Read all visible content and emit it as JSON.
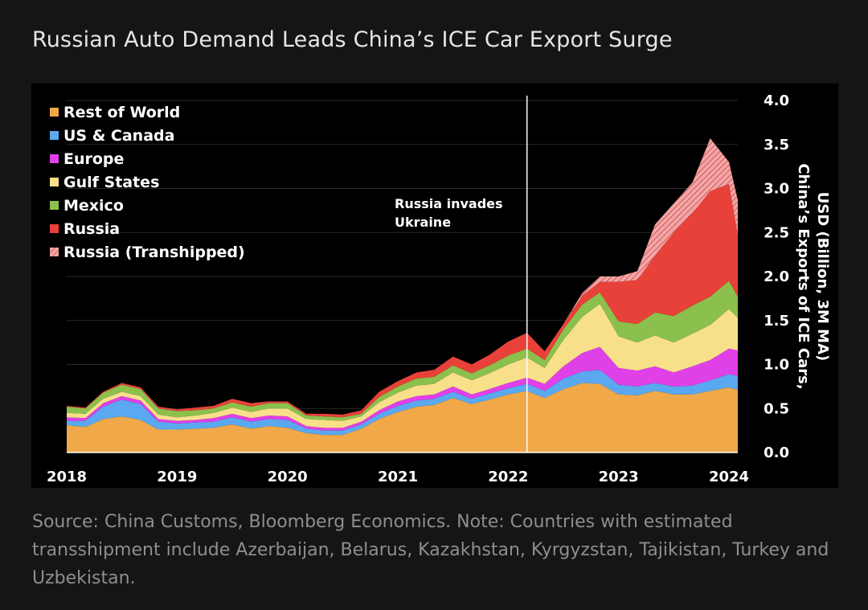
{
  "title": "Russian Auto Demand Leads China’s ICE Car Export Surge",
  "source_note": "Source: China Customs, Bloomberg Economics. Note: Countries with estimated transshipment include Azerbaijan, Belarus, Kazakhstan, Kyrgyzstan, Tajikistan, Turkey and Uzbekistan.",
  "chart_data": {
    "type": "area",
    "stacked": true,
    "title": "Russian Auto Demand Leads China’s ICE Car Export Surge",
    "ylabel_lines": [
      "China’s Exports of ICE Cars,",
      "USD (Billion, 3M MA)"
    ],
    "ylim": [
      0,
      4.0
    ],
    "y_ticks": [
      "0.0",
      "0.5",
      "1.0",
      "1.5",
      "2.0",
      "2.5",
      "3.0",
      "3.5",
      "4.0"
    ],
    "y_axis_position": "right",
    "x_ticks": [
      {
        "label": "2018",
        "x": 2018.0
      },
      {
        "label": "2019",
        "x": 2019.0
      },
      {
        "label": "2020",
        "x": 2020.0
      },
      {
        "label": "2021",
        "x": 2021.0
      },
      {
        "label": "2022",
        "x": 2022.0
      },
      {
        "label": "2023",
        "x": 2023.0
      },
      {
        "label": "2024",
        "x": 2024.0
      }
    ],
    "xlim": [
      2018.0,
      2024.08
    ],
    "grid": "horizontal",
    "legend_position": "top-left",
    "annotation": {
      "lines": [
        "Russia invades",
        "Ukraine"
      ],
      "x": 2022.17
    },
    "x": [
      2018.0,
      2018.17,
      2018.33,
      2018.5,
      2018.67,
      2018.83,
      2019.0,
      2019.17,
      2019.33,
      2019.5,
      2019.67,
      2019.83,
      2020.0,
      2020.17,
      2020.33,
      2020.5,
      2020.67,
      2020.83,
      2021.0,
      2021.17,
      2021.33,
      2021.5,
      2021.67,
      2021.83,
      2022.0,
      2022.17,
      2022.33,
      2022.5,
      2022.67,
      2022.83,
      2023.0,
      2023.17,
      2023.33,
      2023.5,
      2023.67,
      2023.83,
      2024.0,
      2024.08
    ],
    "series": [
      {
        "name": "Rest of World",
        "color": "#f0a848",
        "values": [
          0.31,
          0.29,
          0.38,
          0.41,
          0.37,
          0.26,
          0.26,
          0.27,
          0.28,
          0.32,
          0.27,
          0.3,
          0.28,
          0.22,
          0.2,
          0.2,
          0.27,
          0.38,
          0.46,
          0.52,
          0.54,
          0.62,
          0.55,
          0.6,
          0.66,
          0.7,
          0.62,
          0.72,
          0.79,
          0.78,
          0.66,
          0.65,
          0.7,
          0.66,
          0.66,
          0.7,
          0.74,
          0.71
        ]
      },
      {
        "name": "US & Canada",
        "color": "#5aa9f0",
        "values": [
          0.05,
          0.07,
          0.14,
          0.19,
          0.18,
          0.09,
          0.07,
          0.07,
          0.07,
          0.08,
          0.08,
          0.08,
          0.09,
          0.05,
          0.05,
          0.05,
          0.05,
          0.06,
          0.07,
          0.07,
          0.07,
          0.07,
          0.06,
          0.07,
          0.07,
          0.08,
          0.08,
          0.12,
          0.13,
          0.16,
          0.11,
          0.1,
          0.09,
          0.09,
          0.1,
          0.12,
          0.15,
          0.16
        ]
      },
      {
        "name": "Europe",
        "color": "#e040e8",
        "values": [
          0.04,
          0.03,
          0.04,
          0.04,
          0.04,
          0.03,
          0.03,
          0.03,
          0.04,
          0.04,
          0.04,
          0.04,
          0.04,
          0.03,
          0.03,
          0.03,
          0.03,
          0.04,
          0.05,
          0.05,
          0.05,
          0.06,
          0.05,
          0.05,
          0.06,
          0.07,
          0.08,
          0.14,
          0.21,
          0.26,
          0.19,
          0.18,
          0.19,
          0.16,
          0.22,
          0.23,
          0.29,
          0.29
        ]
      },
      {
        "name": "Gulf States",
        "color": "#f8e08a",
        "values": [
          0.05,
          0.05,
          0.05,
          0.05,
          0.05,
          0.05,
          0.04,
          0.05,
          0.06,
          0.07,
          0.07,
          0.08,
          0.09,
          0.08,
          0.09,
          0.08,
          0.06,
          0.09,
          0.1,
          0.12,
          0.12,
          0.16,
          0.16,
          0.18,
          0.21,
          0.23,
          0.18,
          0.3,
          0.41,
          0.49,
          0.36,
          0.32,
          0.35,
          0.34,
          0.37,
          0.4,
          0.45,
          0.37
        ]
      },
      {
        "name": "Mexico",
        "color": "#8cc04c",
        "values": [
          0.07,
          0.06,
          0.07,
          0.08,
          0.08,
          0.07,
          0.07,
          0.06,
          0.05,
          0.06,
          0.06,
          0.06,
          0.06,
          0.04,
          0.04,
          0.04,
          0.03,
          0.06,
          0.07,
          0.08,
          0.08,
          0.08,
          0.08,
          0.09,
          0.1,
          0.1,
          0.09,
          0.12,
          0.14,
          0.13,
          0.17,
          0.21,
          0.26,
          0.3,
          0.32,
          0.32,
          0.32,
          0.24
        ]
      },
      {
        "name": "Russia",
        "color": "#e8413a",
        "values": [
          0.01,
          0.01,
          0.01,
          0.02,
          0.02,
          0.02,
          0.02,
          0.03,
          0.03,
          0.04,
          0.04,
          0.02,
          0.02,
          0.02,
          0.03,
          0.03,
          0.04,
          0.06,
          0.06,
          0.07,
          0.08,
          0.1,
          0.1,
          0.12,
          0.16,
          0.18,
          0.1,
          0.06,
          0.1,
          0.12,
          0.45,
          0.5,
          0.65,
          0.95,
          1.05,
          1.2,
          1.1,
          0.7
        ]
      },
      {
        "name": "Russia (Transhipped)",
        "color": "#f4a6a6",
        "pattern": "hatched",
        "values": [
          0.0,
          0.0,
          0.0,
          0.0,
          0.0,
          0.0,
          0.0,
          0.0,
          0.0,
          0.0,
          0.0,
          0.0,
          0.0,
          0.0,
          0.0,
          0.0,
          0.0,
          0.0,
          0.0,
          0.0,
          0.0,
          0.0,
          0.0,
          0.0,
          0.0,
          0.0,
          0.0,
          0.0,
          0.03,
          0.06,
          0.06,
          0.1,
          0.35,
          0.33,
          0.35,
          0.6,
          0.25,
          0.4
        ]
      }
    ]
  }
}
